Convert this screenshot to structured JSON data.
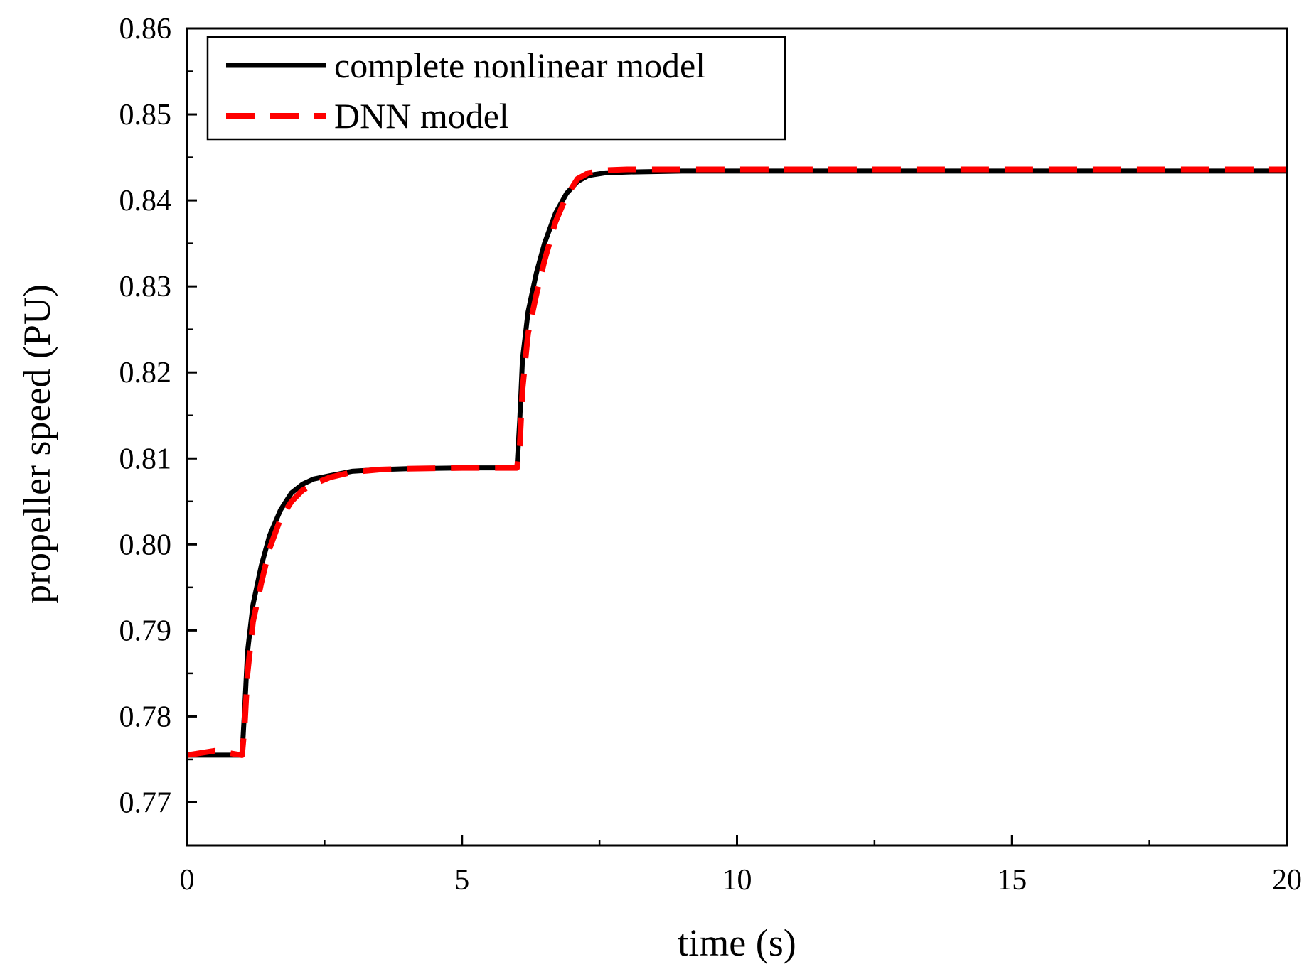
{
  "chart_data": {
    "type": "line",
    "title": "",
    "xlabel": "time (s)",
    "ylabel": "propeller speed (PU)",
    "xlim": [
      0,
      20
    ],
    "ylim": [
      0.765,
      0.86
    ],
    "x_ticks": [
      0,
      5,
      10,
      15,
      20
    ],
    "x_tick_labels": [
      "0",
      "5",
      "10",
      "15",
      "20"
    ],
    "y_ticks": [
      0.77,
      0.78,
      0.79,
      0.8,
      0.81,
      0.82,
      0.83,
      0.84,
      0.85,
      0.86
    ],
    "y_tick_labels": [
      "0.77",
      "0.78",
      "0.79",
      "0.80",
      "0.81",
      "0.82",
      "0.83",
      "0.84",
      "0.85",
      "0.86"
    ],
    "grid": false,
    "legend_position": "top-left",
    "series": [
      {
        "name": "complete nonlinear model",
        "color": "#000000",
        "style": "solid",
        "x": [
          0,
          0.5,
          1.0,
          1.05,
          1.1,
          1.2,
          1.35,
          1.5,
          1.7,
          1.9,
          2.1,
          2.3,
          2.6,
          3.0,
          3.5,
          4.0,
          5.0,
          6.0,
          6.05,
          6.1,
          6.2,
          6.35,
          6.5,
          6.7,
          6.9,
          7.1,
          7.3,
          7.6,
          8.0,
          9.0,
          10.0,
          12.0,
          15.0,
          20.0
        ],
        "y": [
          0.7755,
          0.7755,
          0.7755,
          0.781,
          0.7875,
          0.793,
          0.7975,
          0.801,
          0.804,
          0.806,
          0.807,
          0.8076,
          0.808,
          0.8085,
          0.8087,
          0.8088,
          0.8089,
          0.8089,
          0.8145,
          0.8215,
          0.827,
          0.8315,
          0.835,
          0.8385,
          0.8408,
          0.8422,
          0.8429,
          0.8432,
          0.8433,
          0.8434,
          0.8434,
          0.8434,
          0.8434,
          0.8434
        ]
      },
      {
        "name": "DNN model",
        "color": "#ff0000",
        "style": "dashed",
        "x": [
          0,
          0.5,
          1.0,
          1.05,
          1.1,
          1.2,
          1.35,
          1.5,
          1.7,
          1.9,
          2.1,
          2.3,
          2.6,
          3.0,
          3.5,
          4.0,
          5.0,
          6.0,
          6.05,
          6.1,
          6.2,
          6.35,
          6.5,
          6.7,
          6.9,
          7.1,
          7.3,
          7.6,
          8.0,
          9.0,
          10.0,
          12.0,
          15.0,
          20.0
        ],
        "y": [
          0.7755,
          0.776,
          0.7755,
          0.779,
          0.785,
          0.791,
          0.7955,
          0.7995,
          0.803,
          0.805,
          0.8063,
          0.807,
          0.8078,
          0.8084,
          0.8087,
          0.8088,
          0.8089,
          0.8089,
          0.8115,
          0.818,
          0.8245,
          0.829,
          0.833,
          0.8375,
          0.8405,
          0.8425,
          0.8432,
          0.8435,
          0.8436,
          0.8436,
          0.8436,
          0.8436,
          0.8436,
          0.8436
        ]
      }
    ]
  }
}
